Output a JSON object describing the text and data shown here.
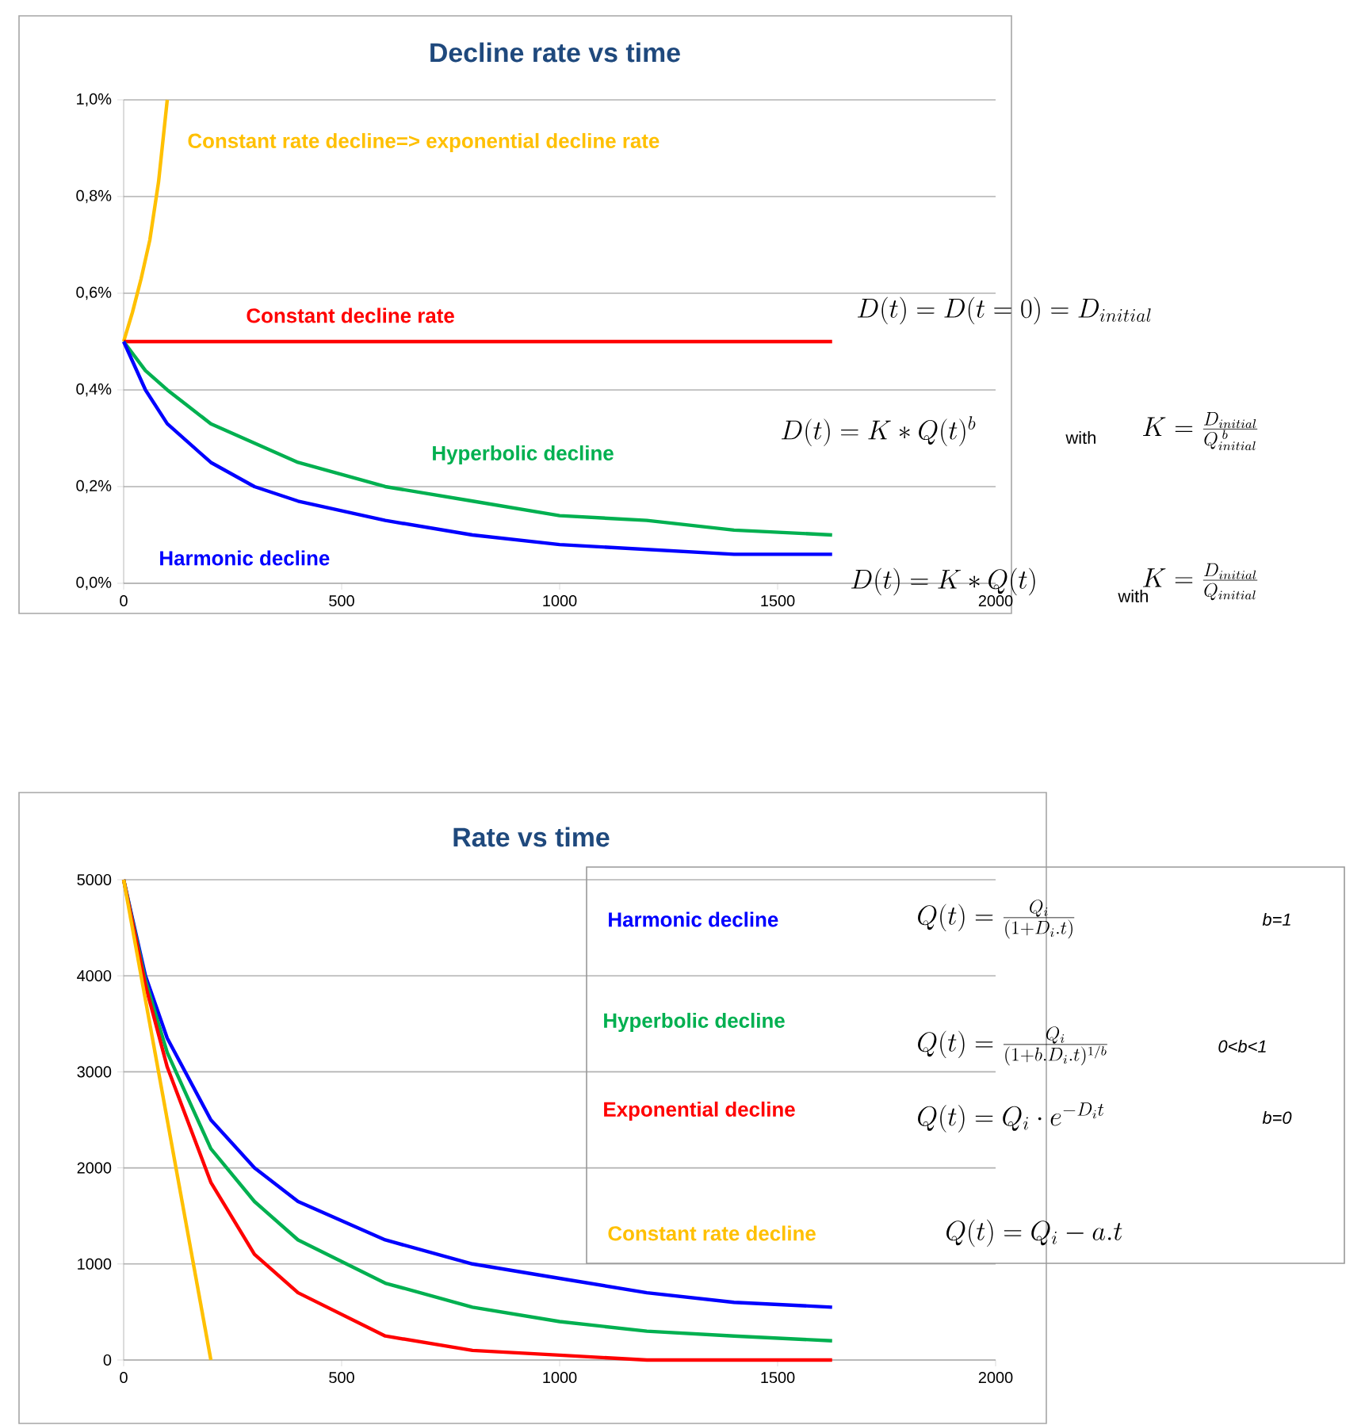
{
  "chart_data": [
    {
      "type": "line",
      "title": "Decline rate vs time",
      "xlim": [
        0,
        2000
      ],
      "xticks": [
        0,
        500,
        1000,
        1500,
        2000
      ],
      "ylim": [
        0,
        1.0
      ],
      "yticks": [
        {
          "value": 0,
          "label": "0,0%"
        },
        {
          "value": 0.2,
          "label": "0,2%"
        },
        {
          "value": 0.4,
          "label": "0,4%"
        },
        {
          "value": 0.6,
          "label": "0,6%"
        },
        {
          "value": 0.8,
          "label": "0,8%"
        },
        {
          "value": 1.0,
          "label": "1,0%"
        }
      ],
      "grid": "y",
      "series": [
        {
          "name": "Constant rate decline=> exponential decline rate",
          "color": "#ffc000",
          "x": [
            0,
            20,
            40,
            60,
            80,
            100
          ],
          "values": [
            0.5,
            0.56,
            0.63,
            0.71,
            0.83,
            1.0
          ]
        },
        {
          "name": "Constant decline rate",
          "color": "#ff0000",
          "x": [
            0,
            1625
          ],
          "values": [
            0.5,
            0.5
          ]
        },
        {
          "name": "Hyperbolic decline",
          "color": "#00b050",
          "x": [
            0,
            50,
            100,
            200,
            300,
            400,
            600,
            800,
            1000,
            1200,
            1400,
            1625
          ],
          "values": [
            0.5,
            0.44,
            0.4,
            0.33,
            0.29,
            0.25,
            0.2,
            0.17,
            0.14,
            0.13,
            0.11,
            0.1
          ]
        },
        {
          "name": "Harmonic decline",
          "color": "#0000ff",
          "x": [
            0,
            50,
            100,
            200,
            300,
            400,
            600,
            800,
            1000,
            1200,
            1400,
            1625
          ],
          "values": [
            0.5,
            0.4,
            0.33,
            0.25,
            0.2,
            0.17,
            0.13,
            0.1,
            0.08,
            0.07,
            0.06,
            0.06
          ]
        }
      ],
      "annotations": [
        "D(t)=D(t=0)=D_{initial}",
        "D(t)=K*Q(t)^{b}",
        "with",
        "K=\\frac{D_{initial}}{Q_{initial}^{\\;b}}",
        "D(t)=K*Q(t)",
        "with",
        "K=\\frac{D_{initial}}{Q_{initial}}"
      ]
    },
    {
      "type": "line",
      "title": "Rate vs time",
      "xlim": [
        0,
        2000
      ],
      "xticks": [
        0,
        500,
        1000,
        1500,
        2000
      ],
      "ylim": [
        0,
        5000
      ],
      "yticks": [
        0,
        1000,
        2000,
        3000,
        4000,
        5000
      ],
      "grid": "y",
      "series": [
        {
          "name": "Harmonic decline",
          "color": "#0000ff",
          "x": [
            0,
            50,
            100,
            200,
            300,
            400,
            600,
            800,
            1000,
            1200,
            1400,
            1625
          ],
          "values": [
            5000,
            4000,
            3350,
            2500,
            2000,
            1650,
            1250,
            1000,
            850,
            700,
            600,
            550
          ]
        },
        {
          "name": "Hyperbolic decline",
          "color": "#00b050",
          "x": [
            0,
            50,
            100,
            200,
            300,
            400,
            600,
            800,
            1000,
            1200,
            1400,
            1625
          ],
          "values": [
            5000,
            3950,
            3200,
            2200,
            1650,
            1250,
            800,
            550,
            400,
            300,
            250,
            200
          ]
        },
        {
          "name": "Exponential decline",
          "color": "#ff0000",
          "x": [
            0,
            50,
            100,
            200,
            300,
            400,
            600,
            800,
            1000,
            1200,
            1400,
            1625
          ],
          "values": [
            5000,
            3900,
            3050,
            1850,
            1100,
            700,
            250,
            100,
            50,
            0,
            0,
            0
          ]
        },
        {
          "name": "Constant rate decline",
          "color": "#ffc000",
          "x": [
            0,
            200
          ],
          "values": [
            5000,
            0
          ]
        }
      ],
      "annotations": [
        "Q(t)=\\frac{Q_i}{(1+D_i.t)}",
        "b=1",
        "Q(t)=\\frac{Q_i}{(1+b.D_i.t)^{1/b}}",
        "0<b<1",
        "Q(t)=Q_i\\cdot e^{-D_i t}",
        "b=0",
        "Q(t)=Q_i-a.t"
      ]
    }
  ]
}
